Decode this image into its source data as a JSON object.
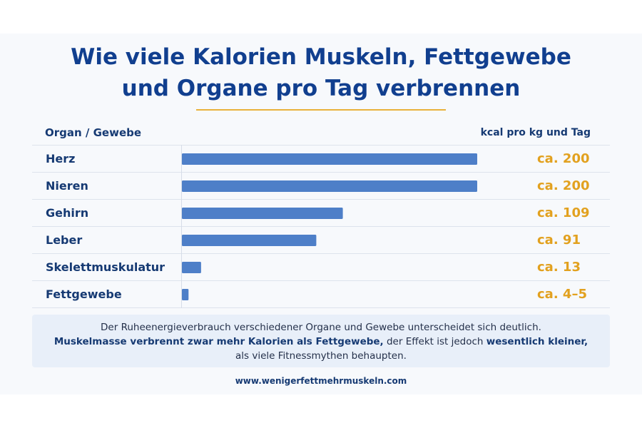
{
  "title_line1": "Wie viele Kalorien Muskeln, Fettgewebe",
  "title_line2": "und Organe pro Tag verbrennen",
  "colors": {
    "title": "#113f8f",
    "bar": "#4e7fc8",
    "value": "#e2a11f",
    "accent": "#e9b23b"
  },
  "chart_data": {
    "type": "bar",
    "orientation": "horizontal",
    "column_header_left": "Organ / Gewebe",
    "column_header_right": "kcal pro kg und Tag",
    "categories": [
      "Herz",
      "Nieren",
      "Gehirn",
      "Leber",
      "Skelettmuskulatur",
      "Fettgewebe"
    ],
    "values": [
      200,
      200,
      109,
      91,
      13,
      4.5
    ],
    "value_labels": [
      "ca. 200",
      "ca. 200",
      "ca. 109",
      "ca. 91",
      "ca. 13",
      "ca. 4–5"
    ],
    "xlim": [
      0,
      200
    ],
    "grid": false,
    "legend": "none"
  },
  "note": {
    "line1": "Der Ruheenergieverbrauch verschiedener Organe und Gewebe unterscheidet sich deutlich.",
    "line2_bold_a": "Muskelmasse verbrennt zwar mehr Kalorien als Fettgewebe,",
    "line2_mid": " der Effekt ist jedoch ",
    "line2_bold_b": "wesentlich kleiner,",
    "line3": "als viele Fitnessmythen behaupten."
  },
  "footer": "www.wenigerfettmehrmuskeln.com"
}
